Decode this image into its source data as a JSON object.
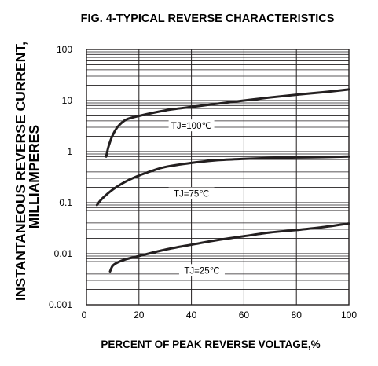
{
  "chart_data": {
    "type": "line",
    "title": "FIG. 4-TYPICAL REVERSE CHARACTERISTICS",
    "xlabel": "PERCENT OF PEAK REVERSE VOLTAGE,%",
    "ylabel_line1": "INSTANTANEOUS REVERSE CURRENT,",
    "ylabel_line2": "MILLIAMPERES",
    "xscale": "linear",
    "yscale": "log",
    "xlim": [
      0,
      100
    ],
    "ylim": [
      0.001,
      100
    ],
    "grid": true,
    "x_ticks": [
      "0",
      "20",
      "40",
      "60",
      "80",
      "100"
    ],
    "y_ticks": [
      "100",
      "10",
      "1",
      "0.1",
      "0.01",
      "0.001"
    ],
    "series": [
      {
        "name": "TJ=100℃",
        "points": [
          [
            7.5,
            0.8
          ],
          [
            8.5,
            1.3
          ],
          [
            10,
            2.1
          ],
          [
            12,
            3.1
          ],
          [
            15,
            4.2
          ],
          [
            20,
            5.0
          ],
          [
            30,
            6.4
          ],
          [
            40,
            7.5
          ],
          [
            50,
            8.7
          ],
          [
            60,
            10.0
          ],
          [
            70,
            11.5
          ],
          [
            80,
            13.0
          ],
          [
            90,
            14.5
          ],
          [
            100,
            16.5
          ]
        ]
      },
      {
        "name": "TJ=75℃",
        "points": [
          [
            4,
            0.09
          ],
          [
            6,
            0.12
          ],
          [
            10,
            0.18
          ],
          [
            15,
            0.26
          ],
          [
            20,
            0.34
          ],
          [
            25,
            0.42
          ],
          [
            30,
            0.5
          ],
          [
            40,
            0.6
          ],
          [
            50,
            0.68
          ],
          [
            60,
            0.72
          ],
          [
            70,
            0.75
          ],
          [
            80,
            0.77
          ],
          [
            90,
            0.78
          ],
          [
            100,
            0.8
          ]
        ]
      },
      {
        "name": "TJ=25℃",
        "points": [
          [
            9,
            0.0045
          ],
          [
            10,
            0.0058
          ],
          [
            12,
            0.0068
          ],
          [
            15,
            0.0078
          ],
          [
            20,
            0.009
          ],
          [
            30,
            0.012
          ],
          [
            40,
            0.015
          ],
          [
            50,
            0.0185
          ],
          [
            60,
            0.022
          ],
          [
            70,
            0.026
          ],
          [
            80,
            0.029
          ],
          [
            90,
            0.033
          ],
          [
            100,
            0.039
          ]
        ]
      }
    ],
    "labels": [
      {
        "series": 0,
        "x": 40,
        "y": 3.2
      },
      {
        "series": 1,
        "x": 40,
        "y": 0.15
      },
      {
        "series": 2,
        "x": 44,
        "y": 0.0047
      }
    ]
  }
}
